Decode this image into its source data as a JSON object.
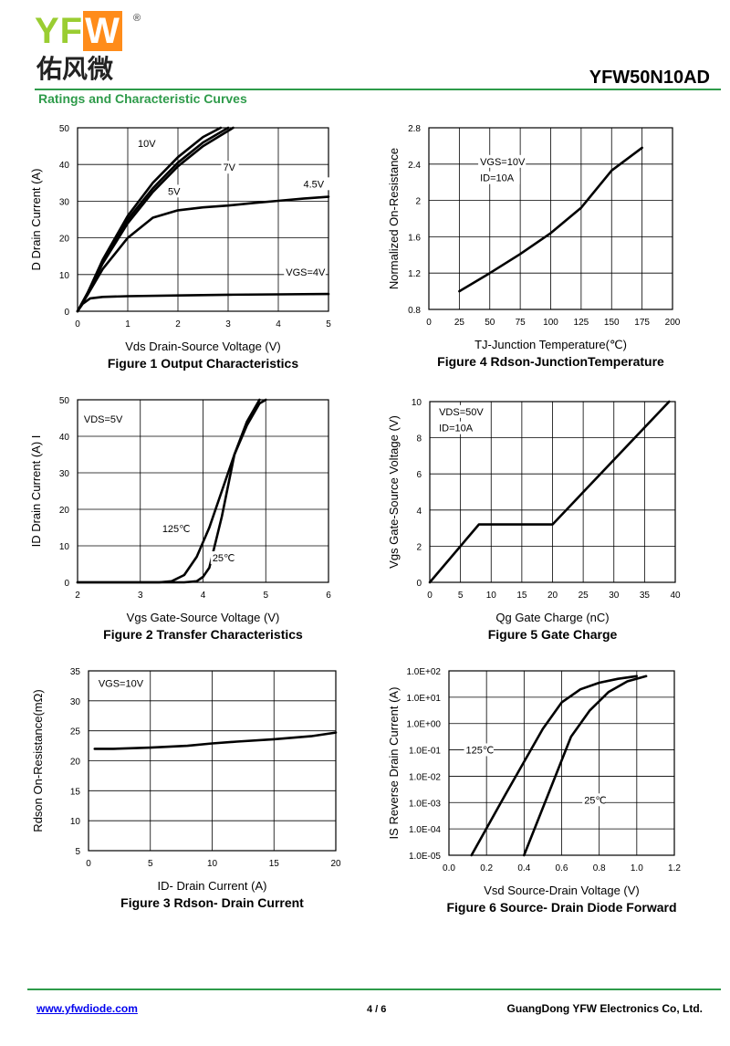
{
  "header": {
    "logo_text": "YFW",
    "logo_cn": "佑风微",
    "logo_reg": "®",
    "part_number": "YFW50N10AD",
    "section_title": "Ratings and Characteristic Curves"
  },
  "footer": {
    "website": "www.yfwdiode.com",
    "page": "4 / 6",
    "company": "GuangDong YFW Electronics Co, Ltd."
  },
  "colors": {
    "accent": "#2e9b4a",
    "grid": "#000000",
    "curve": "#000000"
  },
  "chart_data": [
    {
      "id": "fig1",
      "type": "line",
      "title": "Figure 1 Output Characteristics",
      "xlabel": "Vds Drain-Source Voltage (V)",
      "ylabel": "D Drain Current (A)",
      "xlim": [
        0,
        5
      ],
      "ylim": [
        0,
        50
      ],
      "xticks": [
        "0",
        "1",
        "2",
        "3",
        "4",
        "5"
      ],
      "yticks": [
        "0",
        "10",
        "20",
        "30",
        "40",
        "50"
      ],
      "grid": true,
      "annotations": [
        {
          "text": "10V",
          "x": 1.2,
          "y": 45
        },
        {
          "text": "7V",
          "x": 2.9,
          "y": 38.5
        },
        {
          "text": "5V",
          "x": 1.8,
          "y": 32
        },
        {
          "text": "4.5V",
          "x": 4.5,
          "y": 34
        },
        {
          "text": "VGS=4V",
          "x": 4.15,
          "y": 10
        }
      ],
      "series": [
        {
          "x": [
            0,
            0.2,
            0.5,
            1,
            1.5,
            2,
            2.5,
            2.85
          ],
          "y": [
            0,
            5,
            14,
            26,
            35,
            42,
            47.5,
            50
          ]
        },
        {
          "x": [
            0,
            0.2,
            0.5,
            1,
            1.5,
            2,
            2.5,
            3.0
          ],
          "y": [
            0,
            5,
            13.5,
            25,
            33.5,
            40.5,
            46,
            50
          ]
        },
        {
          "x": [
            0,
            0.2,
            0.5,
            1,
            1.5,
            2,
            2.5,
            3.1
          ],
          "y": [
            0,
            4.8,
            13,
            24,
            32.5,
            39.5,
            45,
            50
          ]
        },
        {
          "x": [
            0,
            0.2,
            0.5,
            1,
            1.5,
            2,
            2.5,
            3,
            3.5,
            4,
            4.5,
            5
          ],
          "y": [
            0,
            4.5,
            11.5,
            20,
            25.5,
            27.5,
            28.3,
            28.8,
            29.5,
            30.1,
            30.7,
            31.2
          ]
        },
        {
          "x": [
            0,
            0.1,
            0.25,
            0.5,
            1,
            2,
            3,
            4,
            5
          ],
          "y": [
            0,
            2,
            3.5,
            3.9,
            4.1,
            4.3,
            4.5,
            4.6,
            4.7
          ]
        }
      ]
    },
    {
      "id": "fig4",
      "type": "line",
      "title": "Figure 4 Rdson-JunctionTemperature",
      "xlabel": "TJ-Junction Temperature(℃)",
      "ylabel": "Normalized On-Resistance",
      "xlim": [
        0,
        200
      ],
      "ylim": [
        0.8,
        2.8
      ],
      "xticks": [
        "0",
        "25",
        "50",
        "75",
        "100",
        "125",
        "150",
        "175",
        "200"
      ],
      "yticks": [
        "0.8",
        "1.2",
        "1.6",
        "2",
        "2.4",
        "2.8"
      ],
      "grid": true,
      "annotations": [
        {
          "text": "VGS=10V",
          "x": 42,
          "y": 2.4
        },
        {
          "text": "ID=10A",
          "x": 42,
          "y": 2.22
        }
      ],
      "series": [
        {
          "x": [
            25,
            50,
            75,
            100,
            125,
            150,
            175
          ],
          "y": [
            1.0,
            1.2,
            1.41,
            1.64,
            1.92,
            2.33,
            2.58
          ]
        }
      ]
    },
    {
      "id": "fig2",
      "type": "line",
      "title": "Figure 2 Transfer Characteristics",
      "xlabel": "Vgs Gate-Source Voltage (V)",
      "ylabel": "ID Drain Current (A) I",
      "xlim": [
        2,
        6
      ],
      "ylim": [
        0,
        50
      ],
      "xticks": [
        "2",
        "3",
        "4",
        "5",
        "6"
      ],
      "yticks": [
        "0",
        "10",
        "20",
        "30",
        "40",
        "50"
      ],
      "grid": true,
      "annotations": [
        {
          "text": "VDS=5V",
          "x": 2.1,
          "y": 44
        },
        {
          "text": "125℃",
          "x": 3.35,
          "y": 14
        },
        {
          "text": "25℃",
          "x": 4.15,
          "y": 6
        }
      ],
      "series": [
        {
          "name": "125℃",
          "x": [
            2,
            3.3,
            3.5,
            3.7,
            3.9,
            4.1,
            4.3,
            4.5,
            4.7,
            4.9
          ],
          "y": [
            0,
            0,
            0.3,
            2,
            7,
            15,
            25,
            35,
            44,
            50
          ]
        },
        {
          "name": "25℃",
          "x": [
            2,
            3.7,
            3.9,
            4.0,
            4.1,
            4.3,
            4.5,
            4.7,
            4.9,
            5.0
          ],
          "y": [
            0,
            0,
            0.3,
            1.5,
            4,
            18,
            35,
            43,
            49,
            50
          ]
        }
      ]
    },
    {
      "id": "fig5",
      "type": "line",
      "title": "Figure 5 Gate Charge",
      "xlabel": "Qg Gate Charge (nC)",
      "ylabel": "Vgs Gate-Source Voltage (V)",
      "xlim": [
        0,
        40
      ],
      "ylim": [
        0,
        10
      ],
      "xticks": [
        "0",
        "5",
        "10",
        "15",
        "20",
        "25",
        "30",
        "35",
        "40"
      ],
      "yticks": [
        "0",
        "2",
        "4",
        "6",
        "8",
        "10"
      ],
      "grid": true,
      "annotations": [
        {
          "text": "VDS=50V",
          "x": 1.5,
          "y": 9.3
        },
        {
          "text": "ID=10A",
          "x": 1.5,
          "y": 8.4
        }
      ],
      "series": [
        {
          "x": [
            0,
            8,
            20,
            39
          ],
          "y": [
            0,
            3.2,
            3.2,
            10
          ]
        }
      ]
    },
    {
      "id": "fig3",
      "type": "line",
      "title": "Figure 3 Rdson- Drain Current",
      "xlabel": "ID- Drain Current (A)",
      "ylabel": "Rdson On-Resistance(mΩ)",
      "xlim": [
        0,
        20
      ],
      "ylim": [
        5,
        35
      ],
      "xticks": [
        "0",
        "5",
        "10",
        "15",
        "20"
      ],
      "yticks": [
        "5",
        "10",
        "15",
        "20",
        "25",
        "30",
        "35"
      ],
      "grid": true,
      "annotations": [
        {
          "text": "VGS=10V",
          "x": 0.8,
          "y": 32.5
        }
      ],
      "series": [
        {
          "x": [
            0.5,
            2,
            5,
            8,
            10,
            12,
            15,
            18,
            20
          ],
          "y": [
            22,
            22,
            22.2,
            22.5,
            22.9,
            23.2,
            23.6,
            24.1,
            24.7
          ]
        }
      ]
    },
    {
      "id": "fig6",
      "type": "line",
      "title": "Figure 6 Source- Drain Diode Forward",
      "xlabel": "Vsd Source-Drain Voltage (V)",
      "ylabel": "IS Reverse Drain Current (A)",
      "xlim": [
        0,
        1.2
      ],
      "ylim": [
        -5,
        2
      ],
      "yscale": "log",
      "xticks": [
        "0.0",
        "0.2",
        "0.4",
        "0.6",
        "0.8",
        "1.0",
        "1.2"
      ],
      "yticks": [
        "1.0E-05",
        "1.0E-04",
        "1.0E-03",
        "1.0E-02",
        "1.0E-01",
        "1.0E+00",
        "1.0E+01",
        "1.0E+02"
      ],
      "grid": true,
      "annotations": [
        {
          "text": "125℃",
          "x": 0.09,
          "y": -1.1
        },
        {
          "text": "25℃",
          "x": 0.72,
          "y": -3.0
        }
      ],
      "series": [
        {
          "name": "125℃",
          "x": [
            0.12,
            0.3,
            0.5,
            0.6,
            0.7,
            0.8,
            0.9,
            1.0
          ],
          "y": [
            -5,
            -2.7,
            -0.2,
            0.8,
            1.3,
            1.55,
            1.7,
            1.8
          ]
        },
        {
          "name": "25℃",
          "x": [
            0.4,
            0.55,
            0.65,
            0.75,
            0.85,
            0.95,
            1.05
          ],
          "y": [
            -5,
            -2.3,
            -0.5,
            0.5,
            1.2,
            1.6,
            1.8
          ]
        }
      ]
    }
  ]
}
